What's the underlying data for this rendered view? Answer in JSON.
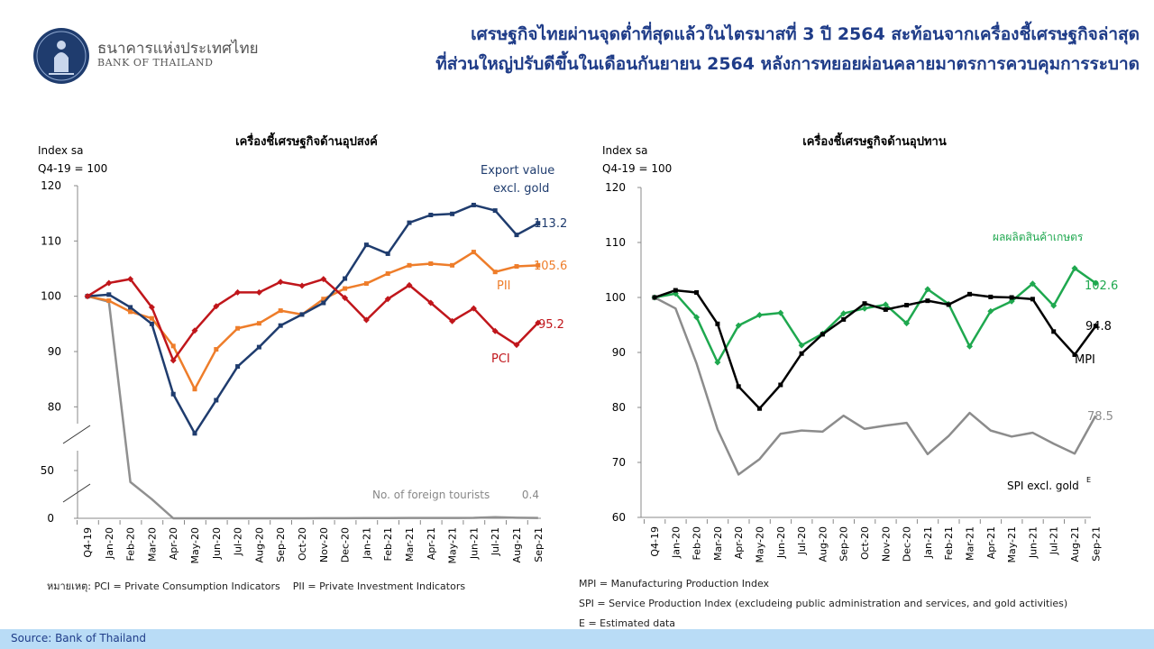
{
  "header": {
    "bank_name_th": "ธนาคารแห่งประเทศไทย",
    "bank_name_en": "BANK OF THAILAND",
    "headline_line1": "เศรษฐกิจไทยผ่านจุดต่ำที่สุดแล้วในไตรมาสที่ 3 ปี 2564 สะท้อนจากเครื่องชี้เศรษฐกิจล่าสุด",
    "headline_line2": "ที่ส่วนใหญ่ปรับดีขึ้นในเดือนกันยายน 2564 หลังการทยอยผ่อนคลายมาตรการควบคุมการระบาด"
  },
  "chart_data": [
    {
      "type": "line",
      "title": "เครื่องชี้เศรษฐกิจด้านอุปสงค์",
      "ylabel_line1": "Index sa",
      "ylabel_line2": "Q4-19 = 100",
      "categories": [
        "Q4-19",
        "Jan-20",
        "Feb-20",
        "Mar-20",
        "Apr-20",
        "May-20",
        "Jun-20",
        "Jul-20",
        "Aug-20",
        "Sep-20",
        "Oct-20",
        "Nov-20",
        "Dec-20",
        "Jan-21",
        "Feb-21",
        "Mar-21",
        "Apr-21",
        "May-21",
        "Jun-21",
        "Jul-21",
        "Aug-21",
        "Sep-21"
      ],
      "y_ticks_upper": [
        "120",
        "110",
        "100",
        "90",
        "80"
      ],
      "y_ticks_lower": [
        "50",
        "0"
      ],
      "ylim_upper": [
        75,
        120
      ],
      "ylim_lower": [
        0,
        60
      ],
      "series": [
        {
          "name": "Export value excl. gold",
          "label_line1": "Export value",
          "label_line2": "excl. gold",
          "end_label": "113.2",
          "color": "#1f3c6e",
          "marker": "square",
          "values": [
            100,
            100.3,
            98.0,
            95.0,
            82.3,
            75.2,
            81.2,
            87.3,
            90.8,
            94.7,
            96.7,
            98.8,
            103.2,
            109.3,
            107.7,
            113.3,
            114.7,
            114.9,
            116.5,
            115.5,
            111.1,
            113.2
          ]
        },
        {
          "name": "PII",
          "end_label": "105.6",
          "color": "#ee7d2a",
          "marker": "square",
          "values": [
            100,
            99.2,
            97.2,
            96.0,
            91.0,
            83.2,
            90.4,
            94.2,
            95.1,
            97.4,
            96.7,
            99.5,
            101.4,
            102.3,
            104.1,
            105.6,
            105.9,
            105.6,
            108.0,
            104.4,
            105.4,
            105.6
          ]
        },
        {
          "name": "PCI",
          "end_label": "95.2",
          "color": "#c0161b",
          "marker": "diamond",
          "values": [
            100,
            102.4,
            103.1,
            98.0,
            88.4,
            93.8,
            98.2,
            100.7,
            100.7,
            102.6,
            101.9,
            103.1,
            99.7,
            95.7,
            99.5,
            102.0,
            98.8,
            95.5,
            97.8,
            93.7,
            91.2,
            95.2
          ]
        },
        {
          "name": "No. of foreign tourists",
          "end_label": "0.4",
          "color": "#909090",
          "marker": "none",
          "values_upper": [
            100,
            99.0
          ],
          "values_lower": [
            53,
            38,
            20,
            0,
            0,
            0,
            0,
            0,
            0,
            0,
            0.1,
            0.1,
            0.2,
            0.2,
            0.3,
            0.3,
            0.3,
            0.5,
            1.2,
            0.6,
            0.4
          ]
        }
      ]
    },
    {
      "type": "line",
      "title": "เครื่องชี้เศรษฐกิจด้านอุปทาน",
      "ylabel_line1": "Index sa",
      "ylabel_line2": "Q4-19 = 100",
      "categories": [
        "Q4-19",
        "Jan-20",
        "Feb-20",
        "Mar-20",
        "Apr-20",
        "May-20",
        "Jun-20",
        "Jul-20",
        "Aug-20",
        "Sep-20",
        "Oct-20",
        "Nov-20",
        "Dec-20",
        "Jan-21",
        "Feb-21",
        "Mar-21",
        "Apr-21",
        "May-21",
        "Jun-21",
        "Jul-21",
        "Aug-21",
        "Sep-21"
      ],
      "ylim": [
        60,
        120
      ],
      "y_ticks": [
        "120",
        "110",
        "100",
        "90",
        "80",
        "70",
        "60"
      ],
      "series": [
        {
          "name": "ผลผลิตสินค้าเกษตร",
          "end_label": "102.6",
          "color": "#1fa84f",
          "marker": "diamond",
          "values": [
            100,
            100.7,
            96.4,
            88.2,
            94.9,
            96.8,
            97.2,
            91.3,
            93.4,
            97.1,
            98.0,
            98.7,
            95.3,
            101.5,
            98.8,
            91.1,
            97.5,
            99.3,
            102.5,
            98.5,
            105.3,
            102.6
          ]
        },
        {
          "name": "MPI",
          "end_label": "94.8",
          "color": "#000000",
          "marker": "square",
          "values": [
            100,
            101.3,
            100.9,
            95.2,
            83.8,
            79.8,
            84.1,
            89.8,
            93.3,
            96.0,
            98.9,
            97.8,
            98.6,
            99.4,
            98.7,
            100.6,
            100.1,
            100.0,
            99.7,
            93.8,
            89.6,
            94.8
          ]
        },
        {
          "name": "SPI excl. gold",
          "label_base": "SPI excl. gold",
          "label_sup": "E",
          "end_label": "78.5",
          "color": "#8c8c8c",
          "marker": "none",
          "values": [
            100,
            98.0,
            88.0,
            76.0,
            67.8,
            70.6,
            75.2,
            75.8,
            75.6,
            78.5,
            76.1,
            76.7,
            77.2,
            71.5,
            74.8,
            79.0,
            75.8,
            74.7,
            75.4,
            73.4,
            71.6,
            78.5
          ]
        }
      ]
    }
  ],
  "notes": {
    "left": "หมายเหตุ: PCI = Private Consumption Indicators    PII = Private Investment Indicators",
    "right_1": "MPI = Manufacturing Production Index",
    "right_2": "SPI = Service Production Index (excludeing public administration and services, and gold activities)",
    "right_3": "E = Estimated data"
  },
  "footer": {
    "source": "Source: Bank of Thailand"
  },
  "colors": {
    "headline": "#1f3c88",
    "footer_bar": "#b9dcf6"
  }
}
